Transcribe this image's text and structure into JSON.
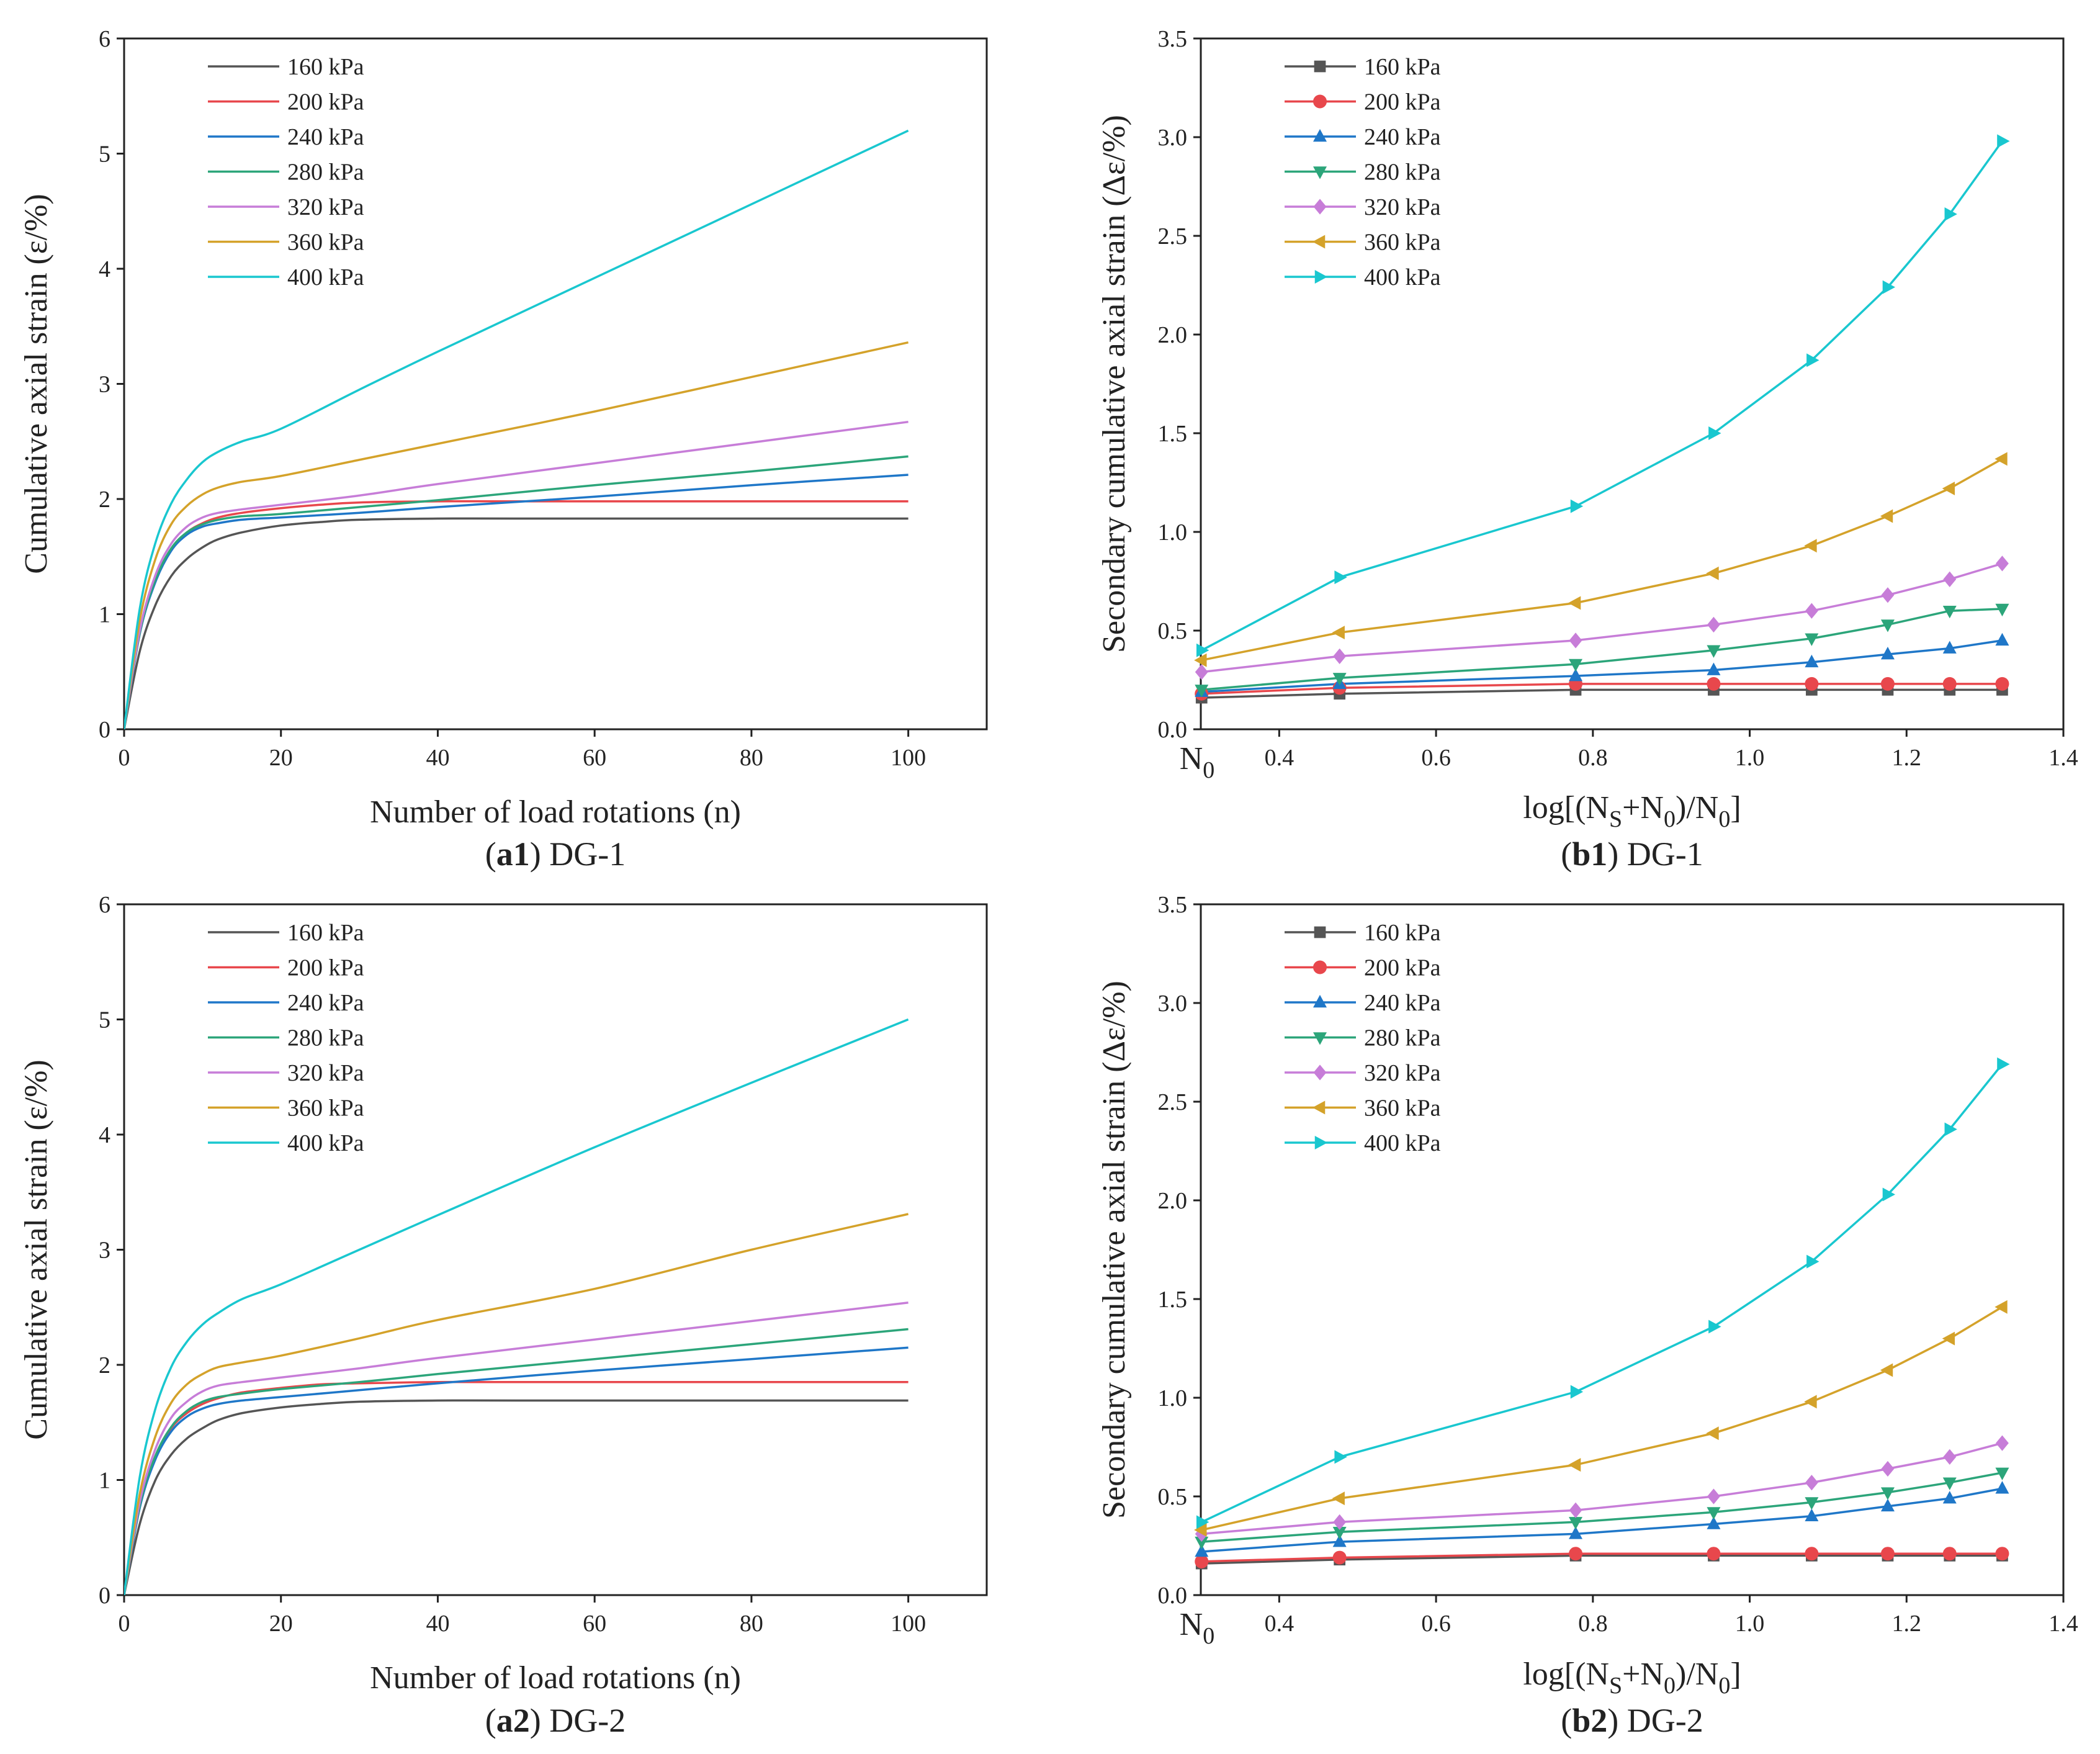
{
  "chart_data": [
    {
      "id": "a1",
      "type": "line",
      "caption": {
        "bold": "a1",
        "suffix": " DG-1"
      },
      "xlabel": "Number of load rotations (n)",
      "ylabel": "Cumulative axial strain (ε/%)",
      "xlim": [
        0,
        110
      ],
      "ylim": [
        0,
        6
      ],
      "xticks": [
        0,
        20,
        40,
        60,
        80,
        100
      ],
      "yticks": [
        0,
        1,
        2,
        3,
        4,
        5,
        6
      ],
      "grid": false,
      "legend_position": "top-left",
      "series": [
        {
          "name": "160 kPa",
          "color": "#555555",
          "x": [
            0,
            2,
            4,
            6,
            8,
            10,
            12,
            15,
            20,
            25,
            30,
            40,
            50,
            100
          ],
          "y": [
            0,
            0.68,
            1.08,
            1.33,
            1.48,
            1.58,
            1.65,
            1.71,
            1.77,
            1.8,
            1.82,
            1.83,
            1.83,
            1.83
          ]
        },
        {
          "name": "200 kPa",
          "color": "#e8474c",
          "x": [
            0,
            2,
            4,
            6,
            8,
            10,
            12,
            15,
            20,
            25,
            30,
            40,
            50,
            100
          ],
          "y": [
            0,
            0.85,
            1.3,
            1.56,
            1.71,
            1.79,
            1.84,
            1.88,
            1.92,
            1.95,
            1.97,
            1.98,
            1.98,
            1.98
          ]
        },
        {
          "name": "240 kPa",
          "color": "#1f77c8",
          "x": [
            0,
            2,
            4,
            6,
            8,
            10,
            12,
            15,
            20,
            30,
            40,
            60,
            80,
            100
          ],
          "y": [
            0,
            0.83,
            1.28,
            1.55,
            1.69,
            1.76,
            1.79,
            1.82,
            1.84,
            1.88,
            1.93,
            2.02,
            2.12,
            2.21
          ]
        },
        {
          "name": "280 kPa",
          "color": "#2ca57a",
          "x": [
            0,
            2,
            4,
            6,
            8,
            10,
            12,
            15,
            20,
            30,
            40,
            60,
            80,
            100
          ],
          "y": [
            0,
            0.84,
            1.3,
            1.57,
            1.71,
            1.78,
            1.82,
            1.85,
            1.87,
            1.93,
            1.99,
            2.12,
            2.24,
            2.37
          ]
        },
        {
          "name": "320 kPa",
          "color": "#c77dd8",
          "x": [
            0,
            2,
            4,
            6,
            8,
            10,
            12,
            15,
            20,
            30,
            40,
            60,
            80,
            100
          ],
          "y": [
            0,
            0.86,
            1.34,
            1.61,
            1.76,
            1.84,
            1.88,
            1.91,
            1.95,
            2.03,
            2.13,
            2.31,
            2.49,
            2.67
          ]
        },
        {
          "name": "360 kPa",
          "color": "#d4a22a",
          "x": [
            0,
            2,
            4,
            6,
            8,
            10,
            12,
            15,
            20,
            30,
            40,
            60,
            80,
            100
          ],
          "y": [
            0,
            0.95,
            1.48,
            1.78,
            1.94,
            2.04,
            2.1,
            2.15,
            2.2,
            2.34,
            2.48,
            2.76,
            3.06,
            3.36
          ]
        },
        {
          "name": "400 kPa",
          "color": "#19c7cf",
          "x": [
            0,
            2,
            4,
            6,
            8,
            10,
            12,
            15,
            20,
            30,
            40,
            60,
            80,
            100
          ],
          "y": [
            0,
            1.05,
            1.62,
            1.96,
            2.17,
            2.32,
            2.41,
            2.5,
            2.61,
            2.95,
            3.28,
            3.92,
            4.56,
            5.2
          ]
        }
      ]
    },
    {
      "id": "b1",
      "type": "line",
      "caption": {
        "bold": "b1",
        "suffix": " DG-1"
      },
      "xlabel": {
        "base": "log[(N",
        "s1": "S",
        "mid": "+N",
        "s2": "0",
        "tail": ")/N",
        "s3": "0",
        "end": "]"
      },
      "ylabel": "Secondary cumulative axial strain (Δε/%)",
      "x_origin_label": {
        "base": "N",
        "sub": "0"
      },
      "xlim": [
        0.3,
        1.4
      ],
      "ylim": [
        0,
        3.5
      ],
      "xticks": [
        0.4,
        0.6,
        0.8,
        1.0,
        1.2,
        1.4
      ],
      "xtick_labels": [
        "0.4",
        "0.6",
        "0.8",
        "1.0",
        "1.2",
        "1.4"
      ],
      "yticks": [
        0,
        0.5,
        1.0,
        1.5,
        2.0,
        2.5,
        3.0,
        3.5
      ],
      "ytick_labels": [
        "0.0",
        "0.5",
        "1.0",
        "1.5",
        "2.0",
        "2.5",
        "3.0",
        "3.5"
      ],
      "grid": false,
      "legend_position": "top-left",
      "x": [
        0.301,
        0.477,
        0.778,
        0.954,
        1.079,
        1.176,
        1.255,
        1.322
      ],
      "series": [
        {
          "name": "160 kPa",
          "color": "#555555",
          "marker": "square",
          "values": [
            0.16,
            0.18,
            0.2,
            0.2,
            0.2,
            0.2,
            0.2,
            0.2
          ]
        },
        {
          "name": "200 kPa",
          "color": "#e8474c",
          "marker": "circle",
          "values": [
            0.18,
            0.21,
            0.23,
            0.23,
            0.23,
            0.23,
            0.23,
            0.23
          ]
        },
        {
          "name": "240 kPa",
          "color": "#1f77c8",
          "marker": "triangle-up",
          "values": [
            0.19,
            0.23,
            0.27,
            0.3,
            0.34,
            0.38,
            0.41,
            0.45
          ]
        },
        {
          "name": "280 kPa",
          "color": "#2ca57a",
          "marker": "triangle-down",
          "values": [
            0.2,
            0.26,
            0.33,
            0.4,
            0.46,
            0.53,
            0.6,
            0.61
          ]
        },
        {
          "name": "320 kPa",
          "color": "#c77dd8",
          "marker": "diamond",
          "values": [
            0.29,
            0.37,
            0.45,
            0.53,
            0.6,
            0.68,
            0.76,
            0.84
          ]
        },
        {
          "name": "360 kPa",
          "color": "#d4a22a",
          "marker": "triangle-left",
          "values": [
            0.35,
            0.49,
            0.64,
            0.79,
            0.93,
            1.08,
            1.22,
            1.37
          ]
        },
        {
          "name": "400 kPa",
          "color": "#19c7cf",
          "marker": "triangle-right",
          "values": [
            0.4,
            0.77,
            1.13,
            1.5,
            1.87,
            2.24,
            2.61,
            2.98
          ]
        }
      ]
    },
    {
      "id": "a2",
      "type": "line",
      "caption": {
        "bold": "a2",
        "suffix": " DG-2"
      },
      "xlabel": "Number of load rotations (n)",
      "ylabel": "Cumulative axial strain (ε/%)",
      "xlim": [
        0,
        110
      ],
      "ylim": [
        0,
        6
      ],
      "xticks": [
        0,
        20,
        40,
        60,
        80,
        100
      ],
      "yticks": [
        0,
        1,
        2,
        3,
        4,
        5,
        6
      ],
      "grid": false,
      "legend_position": "top-left",
      "series": [
        {
          "name": "160 kPa",
          "color": "#555555",
          "x": [
            0,
            2,
            4,
            6,
            8,
            10,
            12,
            15,
            20,
            25,
            30,
            40,
            50,
            100
          ],
          "y": [
            0,
            0.62,
            1.0,
            1.22,
            1.36,
            1.45,
            1.52,
            1.58,
            1.63,
            1.66,
            1.68,
            1.69,
            1.69,
            1.69
          ]
        },
        {
          "name": "200 kPa",
          "color": "#e8474c",
          "x": [
            0,
            2,
            4,
            6,
            8,
            10,
            12,
            15,
            20,
            25,
            30,
            40,
            50,
            100
          ],
          "y": [
            0,
            0.78,
            1.2,
            1.45,
            1.58,
            1.66,
            1.71,
            1.76,
            1.8,
            1.83,
            1.84,
            1.85,
            1.85,
            1.85
          ]
        },
        {
          "name": "240 kPa",
          "color": "#1f77c8",
          "x": [
            0,
            2,
            4,
            6,
            8,
            10,
            12,
            15,
            20,
            30,
            40,
            60,
            80,
            100
          ],
          "y": [
            0,
            0.76,
            1.18,
            1.42,
            1.55,
            1.62,
            1.66,
            1.69,
            1.72,
            1.78,
            1.84,
            1.95,
            2.05,
            2.15
          ]
        },
        {
          "name": "280 kPa",
          "color": "#2ca57a",
          "x": [
            0,
            2,
            4,
            6,
            8,
            10,
            12,
            15,
            20,
            30,
            40,
            60,
            80,
            100
          ],
          "y": [
            0,
            0.78,
            1.21,
            1.46,
            1.6,
            1.68,
            1.72,
            1.75,
            1.79,
            1.85,
            1.92,
            2.05,
            2.18,
            2.31
          ]
        },
        {
          "name": "320 kPa",
          "color": "#c77dd8",
          "x": [
            0,
            2,
            4,
            6,
            8,
            10,
            12,
            15,
            20,
            30,
            40,
            60,
            80,
            100
          ],
          "y": [
            0,
            0.81,
            1.27,
            1.54,
            1.68,
            1.77,
            1.82,
            1.85,
            1.89,
            1.97,
            2.06,
            2.22,
            2.38,
            2.54
          ]
        },
        {
          "name": "360 kPa",
          "color": "#d4a22a",
          "x": [
            0,
            2,
            4,
            6,
            8,
            10,
            12,
            15,
            20,
            30,
            40,
            60,
            80,
            100
          ],
          "y": [
            0,
            0.88,
            1.38,
            1.67,
            1.83,
            1.92,
            1.98,
            2.02,
            2.08,
            2.23,
            2.39,
            2.66,
            3.0,
            3.31
          ]
        },
        {
          "name": "400 kPa",
          "color": "#19c7cf",
          "x": [
            0,
            2,
            4,
            6,
            8,
            10,
            12,
            15,
            20,
            30,
            40,
            60,
            80,
            100
          ],
          "y": [
            0,
            1.03,
            1.62,
            1.98,
            2.2,
            2.35,
            2.45,
            2.57,
            2.7,
            3.0,
            3.3,
            3.89,
            4.45,
            5.0
          ]
        }
      ]
    },
    {
      "id": "b2",
      "type": "line",
      "caption": {
        "bold": "b2",
        "suffix": " DG-2"
      },
      "xlabel": {
        "base": "log[(N",
        "s1": "S",
        "mid": "+N",
        "s2": "0",
        "tail": ")/N",
        "s3": "0",
        "end": "]"
      },
      "ylabel": "Secondary cumulative axial strain (Δε/%)",
      "x_origin_label": {
        "base": "N",
        "sub": "0"
      },
      "xlim": [
        0.3,
        1.4
      ],
      "ylim": [
        0,
        3.5
      ],
      "xticks": [
        0.4,
        0.6,
        0.8,
        1.0,
        1.2,
        1.4
      ],
      "xtick_labels": [
        "0.4",
        "0.6",
        "0.8",
        "1.0",
        "1.2",
        "1.4"
      ],
      "yticks": [
        0,
        0.5,
        1.0,
        1.5,
        2.0,
        2.5,
        3.0,
        3.5
      ],
      "ytick_labels": [
        "0.0",
        "0.5",
        "1.0",
        "1.5",
        "2.0",
        "2.5",
        "3.0",
        "3.5"
      ],
      "grid": false,
      "legend_position": "top-left",
      "x": [
        0.301,
        0.477,
        0.778,
        0.954,
        1.079,
        1.176,
        1.255,
        1.322
      ],
      "series": [
        {
          "name": "160 kPa",
          "color": "#555555",
          "marker": "square",
          "values": [
            0.16,
            0.18,
            0.2,
            0.2,
            0.2,
            0.2,
            0.2,
            0.2
          ]
        },
        {
          "name": "200 kPa",
          "color": "#e8474c",
          "marker": "circle",
          "values": [
            0.17,
            0.19,
            0.21,
            0.21,
            0.21,
            0.21,
            0.21,
            0.21
          ]
        },
        {
          "name": "240 kPa",
          "color": "#1f77c8",
          "marker": "triangle-up",
          "values": [
            0.22,
            0.27,
            0.31,
            0.36,
            0.4,
            0.45,
            0.49,
            0.54
          ]
        },
        {
          "name": "280 kPa",
          "color": "#2ca57a",
          "marker": "triangle-down",
          "values": [
            0.27,
            0.32,
            0.37,
            0.42,
            0.47,
            0.52,
            0.57,
            0.62
          ]
        },
        {
          "name": "320 kPa",
          "color": "#c77dd8",
          "marker": "diamond",
          "values": [
            0.31,
            0.37,
            0.43,
            0.5,
            0.57,
            0.64,
            0.7,
            0.77
          ]
        },
        {
          "name": "360 kPa",
          "color": "#d4a22a",
          "marker": "triangle-left",
          "values": [
            0.33,
            0.49,
            0.66,
            0.82,
            0.98,
            1.14,
            1.3,
            1.46
          ]
        },
        {
          "name": "400 kPa",
          "color": "#19c7cf",
          "marker": "triangle-right",
          "values": [
            0.37,
            0.7,
            1.03,
            1.36,
            1.69,
            2.03,
            2.36,
            2.69
          ]
        }
      ]
    }
  ]
}
